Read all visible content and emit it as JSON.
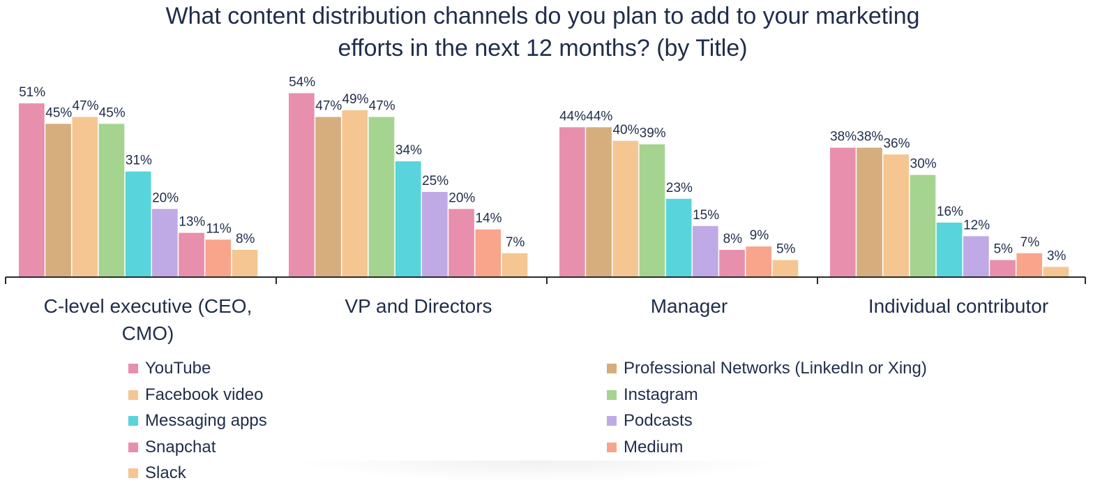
{
  "chart_data": {
    "type": "bar",
    "title_lines": [
      "What content distribution channels do you plan to add to your marketing",
      "efforts in the next 12 months? (by Title)"
    ],
    "categories": [
      [
        "C-level executive (CEO,",
        "CMO)"
      ],
      [
        "VP and Directors"
      ],
      [
        "Manager"
      ],
      [
        "Individual contributor"
      ]
    ],
    "ylim": [
      0,
      60
    ],
    "grid": false,
    "legend_position": "bottom",
    "series": [
      {
        "name": "YouTube",
        "color": "#e88fae",
        "values": [
          51,
          54,
          44,
          38
        ],
        "labels": [
          "51%",
          "54%",
          "44%",
          "38%"
        ]
      },
      {
        "name": "Professional Networks (LinkedIn or Xing)",
        "color": "#d6ad7d",
        "values": [
          45,
          47,
          44,
          38
        ],
        "labels": [
          "45%",
          "47%",
          "44%",
          "38%"
        ]
      },
      {
        "name": "Facebook video",
        "color": "#f5c692",
        "values": [
          47,
          49,
          40,
          36
        ],
        "labels": [
          "47%",
          "49%",
          "40%",
          "36%"
        ]
      },
      {
        "name": "Instagram",
        "color": "#a5d490",
        "values": [
          45,
          47,
          39,
          30
        ],
        "labels": [
          "45%",
          "47%",
          "39%",
          "30%"
        ]
      },
      {
        "name": "Messaging apps",
        "color": "#58d4dc",
        "values": [
          31,
          34,
          23,
          16
        ],
        "labels": [
          "31%",
          "34%",
          "23%",
          "16%"
        ]
      },
      {
        "name": "Podcasts",
        "color": "#bfaae6",
        "values": [
          20,
          25,
          15,
          12
        ],
        "labels": [
          "20%",
          "25%",
          "15%",
          "12%"
        ]
      },
      {
        "name": "Snapchat",
        "color": "#e88fae",
        "values": [
          13,
          20,
          8,
          5
        ],
        "labels": [
          "13%",
          "20%",
          "8%",
          "5%"
        ]
      },
      {
        "name": "Medium",
        "color": "#f8a58c",
        "values": [
          11,
          14,
          9,
          7
        ],
        "labels": [
          "11%",
          "14%",
          "9%",
          "7%"
        ]
      },
      {
        "name": "Slack",
        "color": "#f5c692",
        "values": [
          8,
          7,
          5,
          3
        ],
        "labels": [
          "8%",
          "7%",
          "5%",
          "3%"
        ]
      }
    ]
  }
}
